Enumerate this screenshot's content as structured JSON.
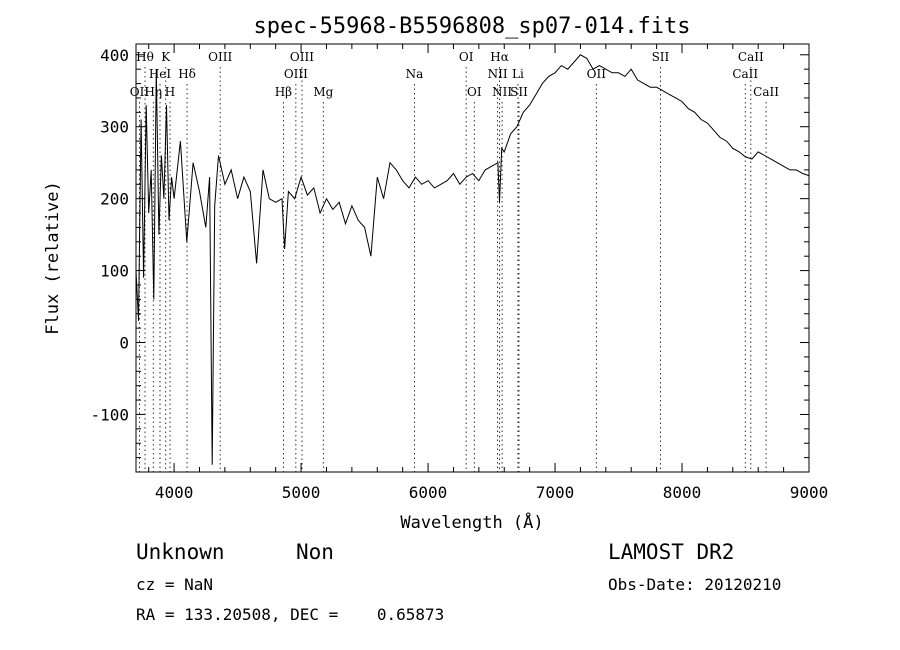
{
  "chart_data": {
    "type": "line",
    "title": "spec-55968-B5596808_sp07-014.fits",
    "xlabel": "Wavelength (Å)",
    "ylabel": "Flux (relative)",
    "xlim": [
      3700,
      9000
    ],
    "ylim": [
      -180,
      415
    ],
    "x_ticks": [
      4000,
      5000,
      6000,
      7000,
      8000,
      9000
    ],
    "y_ticks": [
      -100,
      0,
      100,
      200,
      300,
      400
    ],
    "series": [
      {
        "x": [
          3700,
          3720,
          3740,
          3760,
          3780,
          3800,
          3820,
          3840,
          3860,
          3880,
          3900,
          3920,
          3940,
          3960,
          3980,
          4000,
          4050,
          4100,
          4150,
          4200,
          4250,
          4280,
          4300,
          4320,
          4350,
          4400,
          4450,
          4500,
          4550,
          4600,
          4650,
          4700,
          4750,
          4800,
          4850,
          4870,
          4900,
          4950,
          5000,
          5050,
          5100,
          5150,
          5200,
          5250,
          5300,
          5350,
          5400,
          5450,
          5500,
          5550,
          5600,
          5650,
          5700,
          5750,
          5800,
          5850,
          5900,
          5950,
          6000,
          6050,
          6100,
          6150,
          6200,
          6250,
          6300,
          6350,
          6400,
          6450,
          6500,
          6550,
          6563,
          6580,
          6600,
          6650,
          6700,
          6750,
          6800,
          6850,
          6900,
          6950,
          7000,
          7050,
          7100,
          7150,
          7200,
          7250,
          7300,
          7350,
          7400,
          7450,
          7500,
          7550,
          7600,
          7650,
          7700,
          7750,
          7800,
          7850,
          7900,
          7950,
          8000,
          8050,
          8100,
          8150,
          8200,
          8250,
          8300,
          8350,
          8400,
          8450,
          8500,
          8550,
          8600,
          8650,
          8700,
          8750,
          8800,
          8850,
          8900,
          8950,
          9000
        ],
        "y": [
          100,
          30,
          310,
          90,
          330,
          180,
          240,
          60,
          380,
          150,
          260,
          200,
          330,
          170,
          230,
          200,
          280,
          140,
          250,
          210,
          160,
          230,
          -170,
          190,
          260,
          220,
          240,
          200,
          230,
          210,
          110,
          240,
          200,
          195,
          200,
          130,
          210,
          200,
          230,
          205,
          215,
          180,
          200,
          185,
          195,
          165,
          190,
          170,
          160,
          120,
          230,
          200,
          250,
          240,
          225,
          215,
          230,
          220,
          225,
          215,
          220,
          225,
          235,
          220,
          230,
          235,
          225,
          240,
          245,
          250,
          195,
          270,
          265,
          290,
          300,
          320,
          330,
          345,
          360,
          370,
          375,
          385,
          380,
          390,
          400,
          395,
          380,
          385,
          380,
          375,
          375,
          370,
          380,
          365,
          360,
          355,
          355,
          350,
          345,
          340,
          335,
          325,
          320,
          310,
          305,
          295,
          285,
          280,
          270,
          265,
          258,
          255,
          265,
          260,
          255,
          250,
          245,
          240,
          240,
          235,
          232
        ]
      }
    ],
    "line_markers": [
      {
        "label": "OII",
        "x": 3727,
        "row": 3
      },
      {
        "label": "Hθ",
        "x": 3771,
        "row": 1
      },
      {
        "label": "Hη",
        "x": 3836,
        "row": 3
      },
      {
        "label": "K",
        "x": 3934,
        "row": 1
      },
      {
        "label": "HeI",
        "x": 3889,
        "row": 2
      },
      {
        "label": "H",
        "x": 3968,
        "row": 3
      },
      {
        "label": "Hδ",
        "x": 4102,
        "row": 2
      },
      {
        "label": "OIII",
        "x": 4363,
        "row": 1
      },
      {
        "label": "Hβ",
        "x": 4861,
        "row": 3
      },
      {
        "label": "OIII",
        "x": 4959,
        "row": 2
      },
      {
        "label": "OIII",
        "x": 5007,
        "row": 1
      },
      {
        "label": "Mg",
        "x": 5175,
        "row": 3
      },
      {
        "label": "Na",
        "x": 5893,
        "row": 2
      },
      {
        "label": "OI",
        "x": 6300,
        "row": 1
      },
      {
        "label": "OI",
        "x": 6364,
        "row": 3
      },
      {
        "label": "Hα",
        "x": 6563,
        "row": 1
      },
      {
        "label": "NII",
        "x": 6548,
        "row": 2
      },
      {
        "label": "NII",
        "x": 6583,
        "row": 3
      },
      {
        "label": "Li",
        "x": 6708,
        "row": 2
      },
      {
        "label": "SII",
        "x": 6716,
        "row": 3
      },
      {
        "label": "OII",
        "x": 7325,
        "row": 2
      },
      {
        "label": "SII",
        "x": 7830,
        "row": 1
      },
      {
        "label": "CaII",
        "x": 8498,
        "row": 2
      },
      {
        "label": "CaII",
        "x": 8542,
        "row": 1
      },
      {
        "label": "CaII",
        "x": 8662,
        "row": 3
      }
    ],
    "grid": false,
    "legend": "none"
  },
  "info": {
    "class_label": "Unknown",
    "subclass_label": "Non",
    "cz": "cz = NaN",
    "coords": "RA = 133.20508, DEC =    0.65873",
    "survey": "LAMOST DR2",
    "obs_date": "Obs-Date: 20120210"
  }
}
